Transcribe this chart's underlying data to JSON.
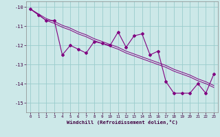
{
  "hours": [
    0,
    1,
    2,
    3,
    4,
    5,
    6,
    7,
    8,
    9,
    10,
    11,
    12,
    13,
    14,
    15,
    16,
    17,
    18,
    19,
    20,
    21,
    22,
    23
  ],
  "windchill": [
    -10.1,
    -10.4,
    -10.7,
    -10.7,
    -12.5,
    -12.0,
    -12.2,
    -12.4,
    -11.8,
    -11.9,
    -12.0,
    -11.3,
    -12.1,
    -11.5,
    -11.4,
    -12.5,
    -12.3,
    -13.9,
    -14.5,
    -14.5,
    -14.5,
    -14.0,
    -14.5,
    -13.5
  ],
  "line1": [
    -10.1,
    -10.4,
    -10.7,
    -10.85,
    -11.05,
    -11.2,
    -11.4,
    -11.55,
    -11.75,
    -11.9,
    -12.05,
    -12.2,
    -12.4,
    -12.55,
    -12.7,
    -12.85,
    -13.0,
    -13.15,
    -13.35,
    -13.5,
    -13.65,
    -13.85,
    -14.0,
    -14.2
  ],
  "line2": [
    -10.1,
    -10.35,
    -10.6,
    -10.75,
    -10.95,
    -11.1,
    -11.3,
    -11.45,
    -11.65,
    -11.8,
    -11.95,
    -12.1,
    -12.3,
    -12.45,
    -12.6,
    -12.75,
    -12.9,
    -13.05,
    -13.25,
    -13.4,
    -13.55,
    -13.75,
    -13.9,
    -14.1
  ],
  "color": "#800080",
  "bg_color": "#cce8e8",
  "grid_color": "#99cccc",
  "xlabel": "Windchill (Refroidissement éolien,°C)",
  "ylim": [
    -15.5,
    -9.7
  ],
  "xlim": [
    -0.5,
    23.5
  ],
  "yticks": [
    -15,
    -14,
    -13,
    -12,
    -11,
    -10
  ],
  "xticks": [
    0,
    1,
    2,
    3,
    4,
    5,
    6,
    7,
    8,
    9,
    10,
    11,
    12,
    13,
    14,
    15,
    16,
    17,
    18,
    19,
    20,
    21,
    22,
    23
  ]
}
